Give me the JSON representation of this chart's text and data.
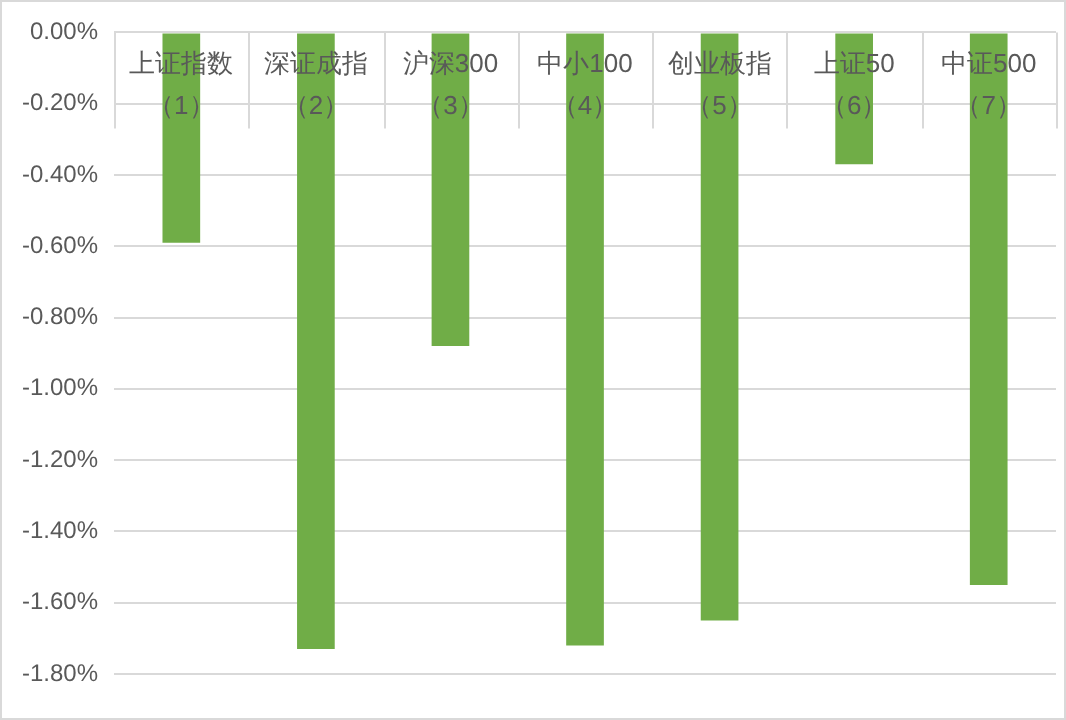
{
  "chart_data": {
    "type": "bar",
    "categories": [
      "上证指数（1）",
      "深证成指（2）",
      "沪深300（3）",
      "中小100（4）",
      "创业板指（5）",
      "上证50（6）",
      "中证500（7）"
    ],
    "values": [
      -0.59,
      -1.73,
      -0.88,
      -1.72,
      -1.65,
      -0.37,
      -1.55
    ],
    "color": "#70ad47",
    "ylim": [
      -1.8,
      0
    ],
    "yticks": [
      {
        "value": 0,
        "label": "0.00%"
      },
      {
        "value": -0.2,
        "label": "-0.20%"
      },
      {
        "value": -0.4,
        "label": "-0.40%"
      },
      {
        "value": -0.6,
        "label": "-0.60%"
      },
      {
        "value": -0.8,
        "label": "-0.80%"
      },
      {
        "value": -1,
        "label": "-1.00%"
      },
      {
        "value": -1.2,
        "label": "-1.20%"
      },
      {
        "value": -1.4,
        "label": "-1.40%"
      },
      {
        "value": -1.6,
        "label": "-1.60%"
      },
      {
        "value": -1.8,
        "label": "-1.80%"
      }
    ],
    "grid": "y",
    "legend": false
  }
}
